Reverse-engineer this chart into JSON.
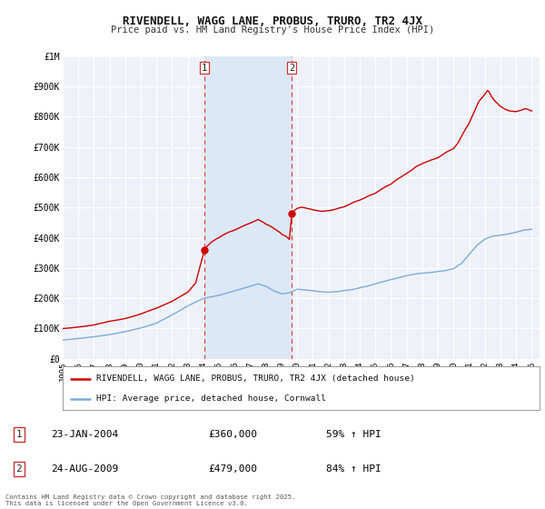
{
  "title": "RIVENDELL, WAGG LANE, PROBUS, TRURO, TR2 4JX",
  "subtitle": "Price paid vs. HM Land Registry's House Price Index (HPI)",
  "ylim": [
    0,
    1000000
  ],
  "yticks": [
    0,
    100000,
    200000,
    300000,
    400000,
    500000,
    600000,
    700000,
    800000,
    900000,
    1000000
  ],
  "ytick_labels": [
    "£0",
    "£100K",
    "£200K",
    "£300K",
    "£400K",
    "£500K",
    "£600K",
    "£700K",
    "£800K",
    "£900K",
    "£1M"
  ],
  "xlim_start": 1995.0,
  "xlim_end": 2025.5,
  "background_color": "#ffffff",
  "plot_bg_color": "#eef2f8",
  "grid_color": "#ffffff",
  "red_line_color": "#cc0000",
  "blue_line_color": "#7aabda",
  "marker1_x": 2004.07,
  "marker1_y": 360000,
  "marker2_x": 2009.65,
  "marker2_y": 479000,
  "vline1_x": 2004.07,
  "vline2_x": 2009.65,
  "vline_color": "#dd4444",
  "shade_color": "#dce8f5",
  "legend_label_red": "RIVENDELL, WAGG LANE, PROBUS, TRURO, TR2 4JX (detached house)",
  "legend_label_blue": "HPI: Average price, detached house, Cornwall",
  "annotation1_label": "1",
  "annotation1_date": "23-JAN-2004",
  "annotation1_price": "£360,000",
  "annotation1_hpi": "59% ↑ HPI",
  "annotation2_label": "2",
  "annotation2_date": "24-AUG-2009",
  "annotation2_price": "£479,000",
  "annotation2_hpi": "84% ↑ HPI",
  "footer": "Contains HM Land Registry data © Crown copyright and database right 2025.\nThis data is licensed under the Open Government Licence v3.0.",
  "xtick_years": [
    1995,
    1996,
    1997,
    1998,
    1999,
    2000,
    2001,
    2002,
    2003,
    2004,
    2005,
    2006,
    2007,
    2008,
    2009,
    2010,
    2011,
    2012,
    2013,
    2014,
    2015,
    2016,
    2017,
    2018,
    2019,
    2020,
    2021,
    2022,
    2023,
    2024,
    2025
  ]
}
